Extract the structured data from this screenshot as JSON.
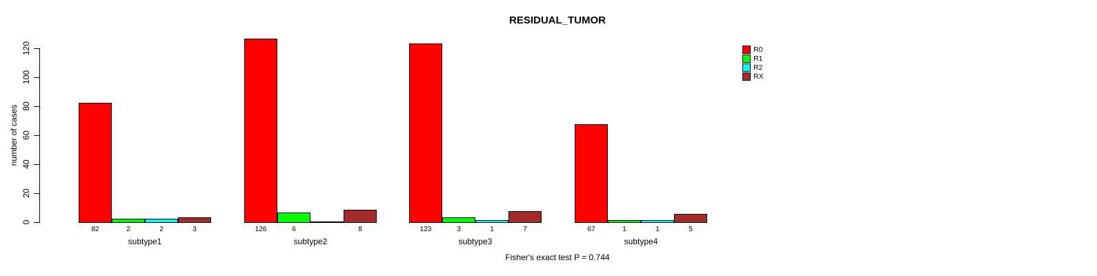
{
  "title": "RESIDUAL_TUMOR",
  "footnote": "Fisher's exact test P = 0.744",
  "chart_data": {
    "type": "bar",
    "grouped": true,
    "title": "RESIDUAL_TUMOR",
    "xlabel": "",
    "ylabel": "number of cases",
    "categories": [
      "subtype1",
      "subtype2",
      "subtype3",
      "subtype4"
    ],
    "series": [
      {
        "name": "R0",
        "color": "#FF0000",
        "values": [
          82,
          126,
          123,
          67
        ]
      },
      {
        "name": "R1",
        "color": "#00FF00",
        "values": [
          2,
          6,
          3,
          1
        ]
      },
      {
        "name": "R2",
        "color": "#00FFFF",
        "values": [
          2,
          0,
          1,
          1
        ]
      },
      {
        "name": "RX",
        "color": "#A52A2A",
        "values": [
          3,
          8,
          7,
          5
        ]
      }
    ],
    "yticks": [
      0,
      20,
      40,
      60,
      80,
      100,
      120
    ],
    "ylim": [
      0,
      120
    ],
    "bar_value_labels_shown": true,
    "zero_value_labels_hidden": true,
    "grid": false,
    "legend_position": "right",
    "legend_entries": [
      "R0",
      "R1",
      "R2",
      "RX"
    ],
    "annotation": "Fisher's exact test P = 0.744"
  }
}
